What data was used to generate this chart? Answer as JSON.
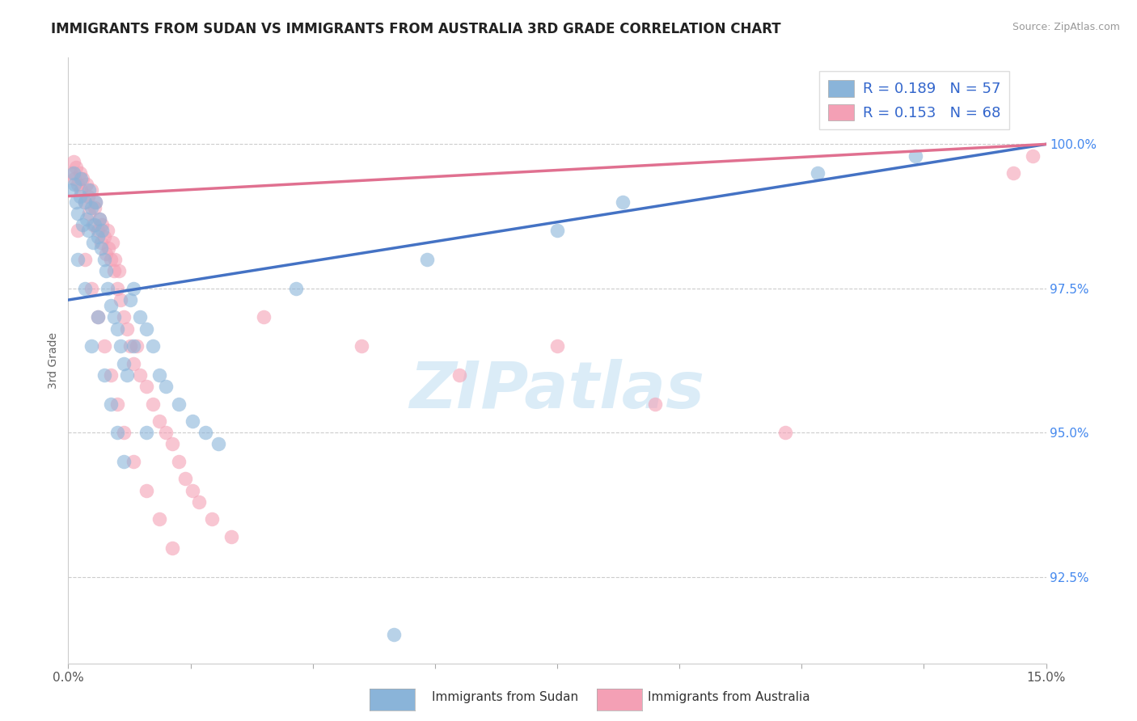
{
  "title": "IMMIGRANTS FROM SUDAN VS IMMIGRANTS FROM AUSTRALIA 3RD GRADE CORRELATION CHART",
  "source": "Source: ZipAtlas.com",
  "ylabel": "3rd Grade",
  "xlim": [
    0.0,
    15.0
  ],
  "ylim": [
    91.0,
    101.5
  ],
  "sudan_R": 0.189,
  "sudan_N": 57,
  "australia_R": 0.153,
  "australia_N": 68,
  "sudan_color": "#8ab4d9",
  "australia_color": "#f4a0b5",
  "sudan_fill": "#8ab4d9",
  "australia_fill": "#f4a0b5",
  "sudan_line_color": "#4472c4",
  "australia_line_color": "#e07090",
  "ytick_vals": [
    92.5,
    95.0,
    97.5,
    100.0
  ],
  "ytick_labels": [
    "92.5%",
    "95.0%",
    "97.5%",
    "100.0%"
  ],
  "watermark_text": "ZIPatlas",
  "legend_sudan_label": "R = 0.189   N = 57",
  "legend_aus_label": "R = 0.153   N = 68",
  "bottom_legend_sudan": "Immigrants from Sudan",
  "bottom_legend_aus": "Immigrants from Australia",
  "sudan_x": [
    0.05,
    0.08,
    0.1,
    0.12,
    0.15,
    0.18,
    0.2,
    0.22,
    0.25,
    0.28,
    0.3,
    0.32,
    0.35,
    0.38,
    0.4,
    0.42,
    0.45,
    0.48,
    0.5,
    0.52,
    0.55,
    0.58,
    0.6,
    0.65,
    0.7,
    0.75,
    0.8,
    0.85,
    0.9,
    0.95,
    1.0,
    1.1,
    1.2,
    1.3,
    1.4,
    1.5,
    1.7,
    1.9,
    2.1,
    2.3,
    0.15,
    0.25,
    0.35,
    0.45,
    0.55,
    0.65,
    0.75,
    0.85,
    1.0,
    1.2,
    3.5,
    5.5,
    7.5,
    8.5,
    11.5,
    13.0,
    5.0
  ],
  "sudan_y": [
    99.2,
    99.5,
    99.3,
    99.0,
    98.8,
    99.1,
    99.4,
    98.6,
    99.0,
    98.7,
    98.5,
    99.2,
    98.9,
    98.3,
    98.6,
    99.0,
    98.4,
    98.7,
    98.2,
    98.5,
    98.0,
    97.8,
    97.5,
    97.2,
    97.0,
    96.8,
    96.5,
    96.2,
    96.0,
    97.3,
    97.5,
    97.0,
    96.8,
    96.5,
    96.0,
    95.8,
    95.5,
    95.2,
    95.0,
    94.8,
    98.0,
    97.5,
    96.5,
    97.0,
    96.0,
    95.5,
    95.0,
    94.5,
    96.5,
    95.0,
    97.5,
    98.0,
    98.5,
    99.0,
    99.5,
    99.8,
    91.5
  ],
  "australia_x": [
    0.05,
    0.08,
    0.1,
    0.12,
    0.15,
    0.18,
    0.2,
    0.22,
    0.25,
    0.28,
    0.3,
    0.32,
    0.35,
    0.38,
    0.4,
    0.42,
    0.45,
    0.48,
    0.5,
    0.52,
    0.55,
    0.58,
    0.6,
    0.62,
    0.65,
    0.68,
    0.7,
    0.72,
    0.75,
    0.78,
    0.8,
    0.85,
    0.9,
    0.95,
    1.0,
    1.05,
    1.1,
    1.2,
    1.3,
    1.4,
    1.5,
    1.6,
    1.7,
    1.8,
    1.9,
    2.0,
    2.2,
    2.5,
    0.15,
    0.25,
    0.35,
    0.45,
    0.55,
    0.65,
    0.75,
    0.85,
    1.0,
    1.2,
    1.4,
    1.6,
    3.0,
    4.5,
    6.0,
    7.5,
    9.0,
    11.0,
    14.8,
    14.5
  ],
  "australia_y": [
    99.5,
    99.7,
    99.4,
    99.6,
    99.3,
    99.5,
    99.2,
    99.4,
    99.0,
    99.3,
    99.1,
    98.8,
    99.2,
    98.6,
    98.9,
    99.0,
    98.5,
    98.7,
    98.3,
    98.6,
    98.4,
    98.1,
    98.5,
    98.2,
    98.0,
    98.3,
    97.8,
    98.0,
    97.5,
    97.8,
    97.3,
    97.0,
    96.8,
    96.5,
    96.2,
    96.5,
    96.0,
    95.8,
    95.5,
    95.2,
    95.0,
    94.8,
    94.5,
    94.2,
    94.0,
    93.8,
    93.5,
    93.2,
    98.5,
    98.0,
    97.5,
    97.0,
    96.5,
    96.0,
    95.5,
    95.0,
    94.5,
    94.0,
    93.5,
    93.0,
    97.0,
    96.5,
    96.0,
    96.5,
    95.5,
    95.0,
    99.8,
    99.5
  ]
}
